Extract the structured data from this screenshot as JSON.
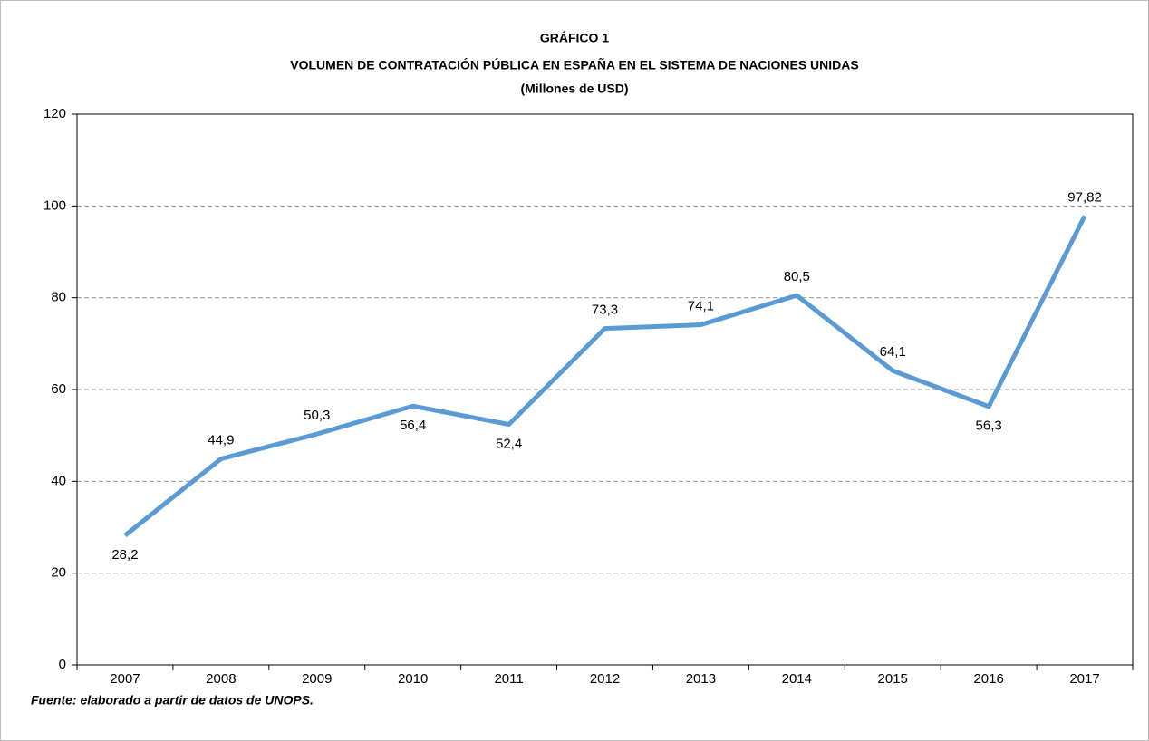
{
  "chart_data": {
    "type": "line",
    "title": "GRÁFICO 1",
    "subtitle": "VOLUMEN DE CONTRATACIÓN PÚBLICA EN ESPAÑA EN EL SISTEMA DE NACIONES UNIDAS",
    "unit_label": "(Millones de USD)",
    "source": "Fuente: elaborado a partir de datos de UNOPS.",
    "categories": [
      "2007",
      "2008",
      "2009",
      "2010",
      "2011",
      "2012",
      "2013",
      "2014",
      "2015",
      "2016",
      "2017"
    ],
    "series": [
      {
        "color": "#5b9bd5",
        "values": [
          28.2,
          44.9,
          50.3,
          56.4,
          52.4,
          73.3,
          74.1,
          80.5,
          64.1,
          56.3,
          97.82
        ],
        "value_labels": [
          "28,2",
          "44,9",
          "50,3",
          "56,4",
          "52,4",
          "73,3",
          "74,1",
          "80,5",
          "64,1",
          "56,3",
          "97,82"
        ]
      }
    ],
    "ylim": [
      0,
      120
    ],
    "yticks": [
      0,
      20,
      40,
      60,
      80,
      100,
      120
    ],
    "grid": true
  }
}
